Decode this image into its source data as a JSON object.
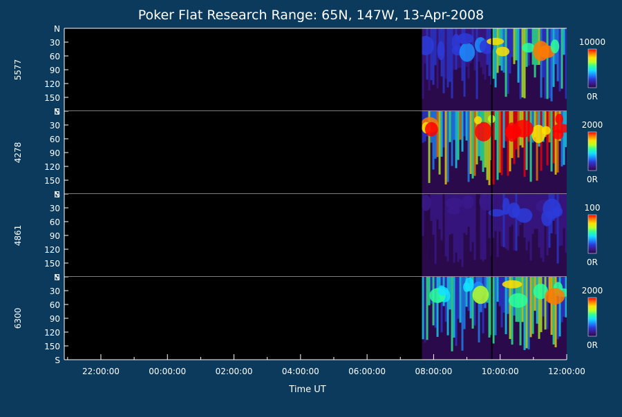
{
  "chart_data": {
    "type": "heatmap",
    "title": "Poker Flat Research Range: 65N, 147W, 13-Apr-2008",
    "xlabel": "Time UT",
    "x_ticks": [
      "22:00:00",
      "00:00:00",
      "02:00:00",
      "04:00:00",
      "06:00:00",
      "08:00:00",
      "10:00:00",
      "12:00:00"
    ],
    "x_range_hours": [
      20.9,
      36.0
    ],
    "data_start_hour": 31.65,
    "gap_hour": 33.75,
    "y_tick_labels": [
      "N",
      "30",
      "60",
      "90",
      "120",
      "150",
      "S"
    ],
    "colormap": [
      "#2a0a4a",
      "#3a1a8c",
      "#2b3bd9",
      "#1c8cff",
      "#14e0ff",
      "#2cff9a",
      "#b8ff24",
      "#ffe000",
      "#ff7a00",
      "#ff0000"
    ],
    "background_color": "#0b3a5c",
    "panels": [
      {
        "wavelength": "5577",
        "max": "10000",
        "min": "0R",
        "profile": [
          0.15,
          0.45,
          0.25,
          0.1
        ]
      },
      {
        "wavelength": "4278",
        "max": "2000",
        "min": "0R",
        "profile": [
          0.55,
          0.7,
          0.45,
          0.25
        ]
      },
      {
        "wavelength": "4861",
        "max": "100",
        "min": "0R",
        "profile": [
          0.08,
          0.12,
          0.1,
          0.06
        ]
      },
      {
        "wavelength": "6300",
        "max": "2000",
        "min": "0R",
        "profile": [
          0.35,
          0.5,
          0.3,
          0.1
        ]
      }
    ]
  }
}
